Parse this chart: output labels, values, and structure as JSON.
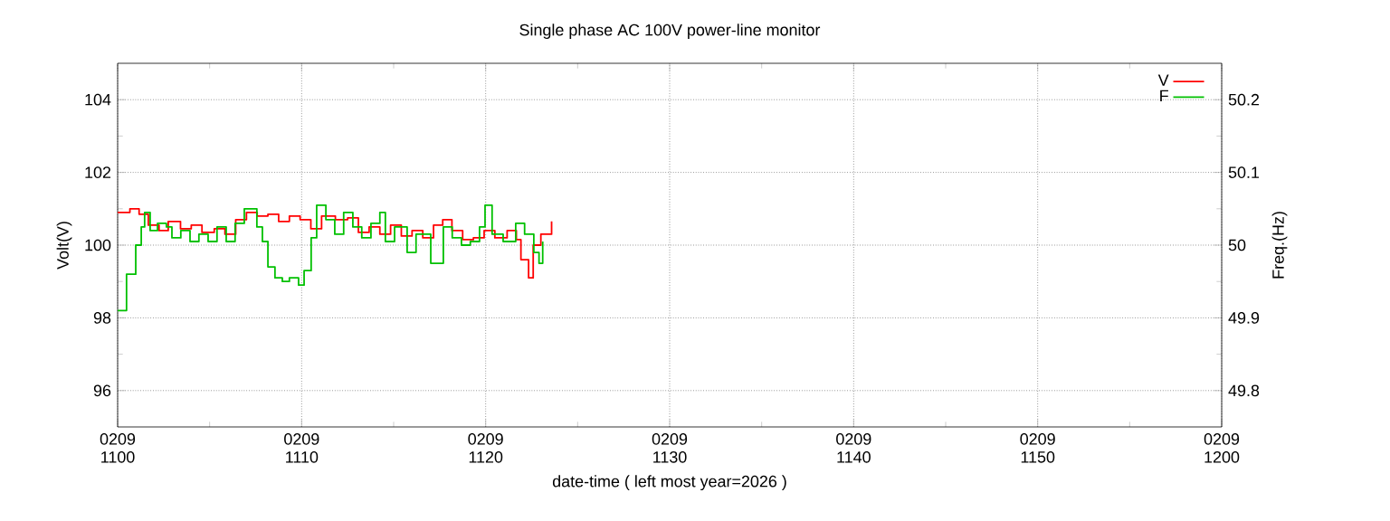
{
  "chart_data": {
    "type": "step",
    "title": "Single phase AC 100V power-line monitor",
    "xlabel": "date-time ( left most year=2026 )",
    "ylabel": "Volt(V)",
    "y2label": "Freq.(Hz)",
    "xlim": [
      "2026-02-09T11:00",
      "2026-02-09T12:00"
    ],
    "xticks": [
      {
        "value": "2026-02-09T11:00",
        "label": "0209 1100"
      },
      {
        "value": "2026-02-09T11:10",
        "label": "0209 1110"
      },
      {
        "value": "2026-02-09T11:20",
        "label": "0209 1120"
      },
      {
        "value": "2026-02-09T11:30",
        "label": "0209 1130"
      },
      {
        "value": "2026-02-09T11:40",
        "label": "0209 1140"
      },
      {
        "value": "2026-02-09T11:50",
        "label": "0209 1150"
      },
      {
        "value": "2026-02-09T12:00",
        "label": "0209 1200"
      }
    ],
    "ylim": [
      95,
      105
    ],
    "yticks": [
      96,
      98,
      100,
      102,
      104
    ],
    "y2lim": [
      49.75,
      50.25
    ],
    "y2ticks": [
      49.8,
      49.9,
      50,
      50.1,
      50.2
    ],
    "grid": true,
    "legend": "top right",
    "series": [
      {
        "name": "V",
        "color": "#ff0000",
        "x": [
          "2026-02-09T11:00:00",
          "2026-02-09T11:00:40",
          "2026-02-09T11:01:10",
          "2026-02-09T11:01:40",
          "2026-02-09T11:02:15",
          "2026-02-09T11:02:45",
          "2026-02-09T11:03:25",
          "2026-02-09T11:04:00",
          "2026-02-09T11:04:35",
          "2026-02-09T11:05:15",
          "2026-02-09T11:05:50",
          "2026-02-09T11:06:25",
          "2026-02-09T11:07:00",
          "2026-02-09T11:07:35",
          "2026-02-09T11:08:10",
          "2026-02-09T11:08:45",
          "2026-02-09T11:09:20",
          "2026-02-09T11:09:55",
          "2026-02-09T11:10:30",
          "2026-02-09T11:11:05",
          "2026-02-09T11:11:50",
          "2026-02-09T11:12:30",
          "2026-02-09T11:13:05",
          "2026-02-09T11:13:40",
          "2026-02-09T11:14:15",
          "2026-02-09T11:14:50",
          "2026-02-09T11:15:25",
          "2026-02-09T11:16:00",
          "2026-02-09T11:16:35",
          "2026-02-09T11:17:10",
          "2026-02-09T11:17:40",
          "2026-02-09T11:18:10",
          "2026-02-09T11:18:45",
          "2026-02-09T11:19:20",
          "2026-02-09T11:19:55",
          "2026-02-09T11:20:30",
          "2026-02-09T11:21:10",
          "2026-02-09T11:21:40",
          "2026-02-09T11:21:55",
          "2026-02-09T11:22:20",
          "2026-02-09T11:22:35",
          "2026-02-09T11:23:00",
          "2026-02-09T11:23:35"
        ],
        "values": [
          100.9,
          101.0,
          100.85,
          100.55,
          100.4,
          100.65,
          100.45,
          100.55,
          100.35,
          100.45,
          100.3,
          100.7,
          100.9,
          100.8,
          100.85,
          100.65,
          100.8,
          100.7,
          100.45,
          100.8,
          100.7,
          100.75,
          100.35,
          100.5,
          100.3,
          100.55,
          100.25,
          100.4,
          100.2,
          100.55,
          100.7,
          100.4,
          100.15,
          100.2,
          100.4,
          100.2,
          100.4,
          100.15,
          99.6,
          99.1,
          100.0,
          100.3,
          100.65
        ]
      },
      {
        "name": "F",
        "color": "#00c000",
        "axis": "y2",
        "x": [
          "2026-02-09T11:00:00",
          "2026-02-09T11:00:29",
          "2026-02-09T11:00:59",
          "2026-02-09T11:01:17",
          "2026-02-09T11:01:28",
          "2026-02-09T11:01:46",
          "2026-02-09T11:02:10",
          "2026-02-09T11:02:39",
          "2026-02-09T11:02:57",
          "2026-02-09T11:03:26",
          "2026-02-09T11:03:56",
          "2026-02-09T11:04:25",
          "2026-02-09T11:04:55",
          "2026-02-09T11:05:24",
          "2026-02-09T11:05:54",
          "2026-02-09T11:06:23",
          "2026-02-09T11:06:53",
          "2026-02-09T11:07:11",
          "2026-02-09T11:07:34",
          "2026-02-09T11:07:52",
          "2026-02-09T11:08:10",
          "2026-02-09T11:08:33",
          "2026-02-09T11:08:57",
          "2026-02-09T11:09:20",
          "2026-02-09T11:09:50",
          "2026-02-09T11:10:08",
          "2026-02-09T11:10:31",
          "2026-02-09T11:10:49",
          "2026-02-09T11:11:19",
          "2026-02-09T11:11:48",
          "2026-02-09T11:12:17",
          "2026-02-09T11:12:47",
          "2026-02-09T11:13:16",
          "2026-02-09T11:13:46",
          "2026-02-09T11:14:15",
          "2026-02-09T11:14:33",
          "2026-02-09T11:15:03",
          "2026-02-09T11:15:44",
          "2026-02-09T11:16:13",
          "2026-02-09T11:17:01",
          "2026-02-09T11:17:42",
          "2026-02-09T11:18:11",
          "2026-02-09T11:18:41",
          "2026-02-09T11:19:10",
          "2026-02-09T11:19:40",
          "2026-02-09T11:19:58",
          "2026-02-09T11:20:21",
          "2026-02-09T11:20:57",
          "2026-02-09T11:21:38",
          "2026-02-09T11:22:07",
          "2026-02-09T11:22:37",
          "2026-02-09T11:22:54",
          "2026-02-09T11:23:06"
        ],
        "values": [
          49.91,
          49.96,
          50.0,
          50.025,
          50.045,
          50.02,
          50.03,
          50.025,
          50.01,
          50.02,
          50.005,
          50.015,
          50.005,
          50.025,
          50.005,
          50.03,
          50.05,
          50.05,
          50.025,
          50.005,
          49.97,
          49.955,
          49.95,
          49.955,
          49.945,
          49.965,
          50.01,
          50.055,
          50.035,
          50.015,
          50.045,
          50.025,
          50.01,
          50.03,
          50.045,
          50.005,
          50.025,
          49.99,
          50.015,
          49.975,
          50.025,
          50.01,
          50.0,
          50.005,
          50.025,
          50.055,
          50.015,
          50.005,
          50.03,
          50.015,
          49.99,
          49.975,
          50.005
        ]
      }
    ]
  }
}
